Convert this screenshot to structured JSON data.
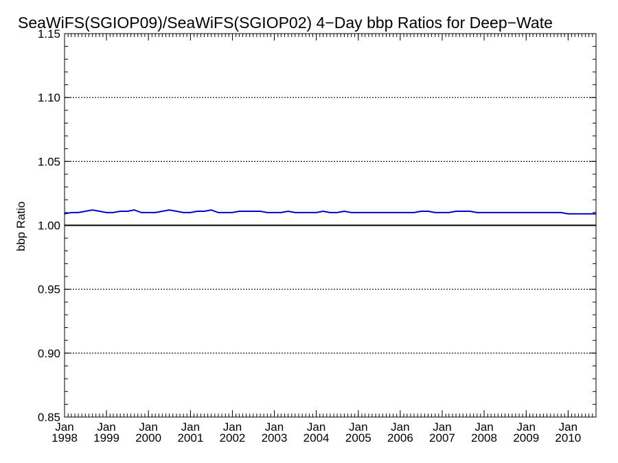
{
  "chart_data": {
    "type": "line",
    "title": "SeaWiFS(SGIOP09)/SeaWiFS(SGIOP02) 4−Day bbp Ratios for Deep−Wate",
    "xlabel": "",
    "ylabel": "bbp Ratio",
    "xlim": [
      "1998-01-01",
      "2010-09-01"
    ],
    "ylim": [
      0.85,
      1.15
    ],
    "yticks": [
      "0.85",
      "0.90",
      "0.95",
      "1.00",
      "1.05",
      "1.10",
      "1.15"
    ],
    "xticks": [
      {
        "line1": "Jan",
        "line2": "1998",
        "date": "1998-01-01"
      },
      {
        "line1": "Jan",
        "line2": "1999",
        "date": "1999-01-01"
      },
      {
        "line1": "Jan",
        "line2": "2000",
        "date": "2000-01-01"
      },
      {
        "line1": "Jan",
        "line2": "2001",
        "date": "2001-01-01"
      },
      {
        "line1": "Jan",
        "line2": "2002",
        "date": "2002-01-01"
      },
      {
        "line1": "Jan",
        "line2": "2003",
        "date": "2003-01-01"
      },
      {
        "line1": "Jan",
        "line2": "2004",
        "date": "2004-01-01"
      },
      {
        "line1": "Jan",
        "line2": "2005",
        "date": "2005-01-01"
      },
      {
        "line1": "Jan",
        "line2": "2006",
        "date": "2006-01-01"
      },
      {
        "line1": "Jan",
        "line2": "2007",
        "date": "2007-01-01"
      },
      {
        "line1": "Jan",
        "line2": "2008",
        "date": "2008-01-01"
      },
      {
        "line1": "Jan",
        "line2": "2009",
        "date": "2009-01-01"
      },
      {
        "line1": "Jan",
        "line2": "2010",
        "date": "2010-01-01"
      }
    ],
    "dotted_grid_y": [
      0.9,
      0.95,
      1.05,
      1.1
    ],
    "reference_line_y": 1.0,
    "grid": true,
    "series": [
      {
        "color": "#0000cc",
        "x": [
          "1998-01-01",
          "1998-03-01",
          "1998-05-01",
          "1998-07-01",
          "1998-09-01",
          "1998-11-01",
          "1999-01-01",
          "1999-03-01",
          "1999-05-01",
          "1999-07-01",
          "1999-09-01",
          "1999-11-01",
          "2000-01-01",
          "2000-03-01",
          "2000-05-01",
          "2000-07-01",
          "2000-09-01",
          "2000-11-01",
          "2001-01-01",
          "2001-03-01",
          "2001-05-01",
          "2001-07-01",
          "2001-09-01",
          "2001-11-01",
          "2002-01-01",
          "2002-03-01",
          "2002-05-01",
          "2002-07-01",
          "2002-09-01",
          "2002-11-01",
          "2003-01-01",
          "2003-03-01",
          "2003-05-01",
          "2003-07-01",
          "2003-09-01",
          "2003-11-01",
          "2004-01-01",
          "2004-03-01",
          "2004-05-01",
          "2004-07-01",
          "2004-09-01",
          "2004-11-01",
          "2005-01-01",
          "2005-03-01",
          "2005-05-01",
          "2005-07-01",
          "2005-09-01",
          "2005-11-01",
          "2006-01-01",
          "2006-03-01",
          "2006-05-01",
          "2006-07-01",
          "2006-09-01",
          "2006-11-01",
          "2007-01-01",
          "2007-03-01",
          "2007-05-01",
          "2007-07-01",
          "2007-09-01",
          "2007-11-01",
          "2008-01-01",
          "2008-03-01",
          "2008-05-01",
          "2008-07-01",
          "2008-09-01",
          "2008-11-01",
          "2009-01-01",
          "2009-03-01",
          "2009-05-01",
          "2009-07-01",
          "2009-09-01",
          "2009-11-01",
          "2010-01-01",
          "2010-03-01",
          "2010-05-01",
          "2010-07-01",
          "2010-09-01"
        ],
        "y": [
          1.009,
          1.01,
          1.01,
          1.011,
          1.012,
          1.011,
          1.01,
          1.01,
          1.011,
          1.011,
          1.012,
          1.01,
          1.01,
          1.01,
          1.011,
          1.012,
          1.011,
          1.01,
          1.01,
          1.011,
          1.011,
          1.012,
          1.01,
          1.01,
          1.01,
          1.011,
          1.011,
          1.011,
          1.011,
          1.01,
          1.01,
          1.01,
          1.011,
          1.01,
          1.01,
          1.01,
          1.01,
          1.011,
          1.01,
          1.01,
          1.011,
          1.01,
          1.01,
          1.01,
          1.01,
          1.01,
          1.01,
          1.01,
          1.01,
          1.01,
          1.01,
          1.011,
          1.011,
          1.01,
          1.01,
          1.01,
          1.011,
          1.011,
          1.011,
          1.01,
          1.01,
          1.01,
          1.01,
          1.01,
          1.01,
          1.01,
          1.01,
          1.01,
          1.01,
          1.01,
          1.01,
          1.01,
          1.009,
          1.009,
          1.009,
          1.009,
          1.009
        ]
      }
    ]
  }
}
